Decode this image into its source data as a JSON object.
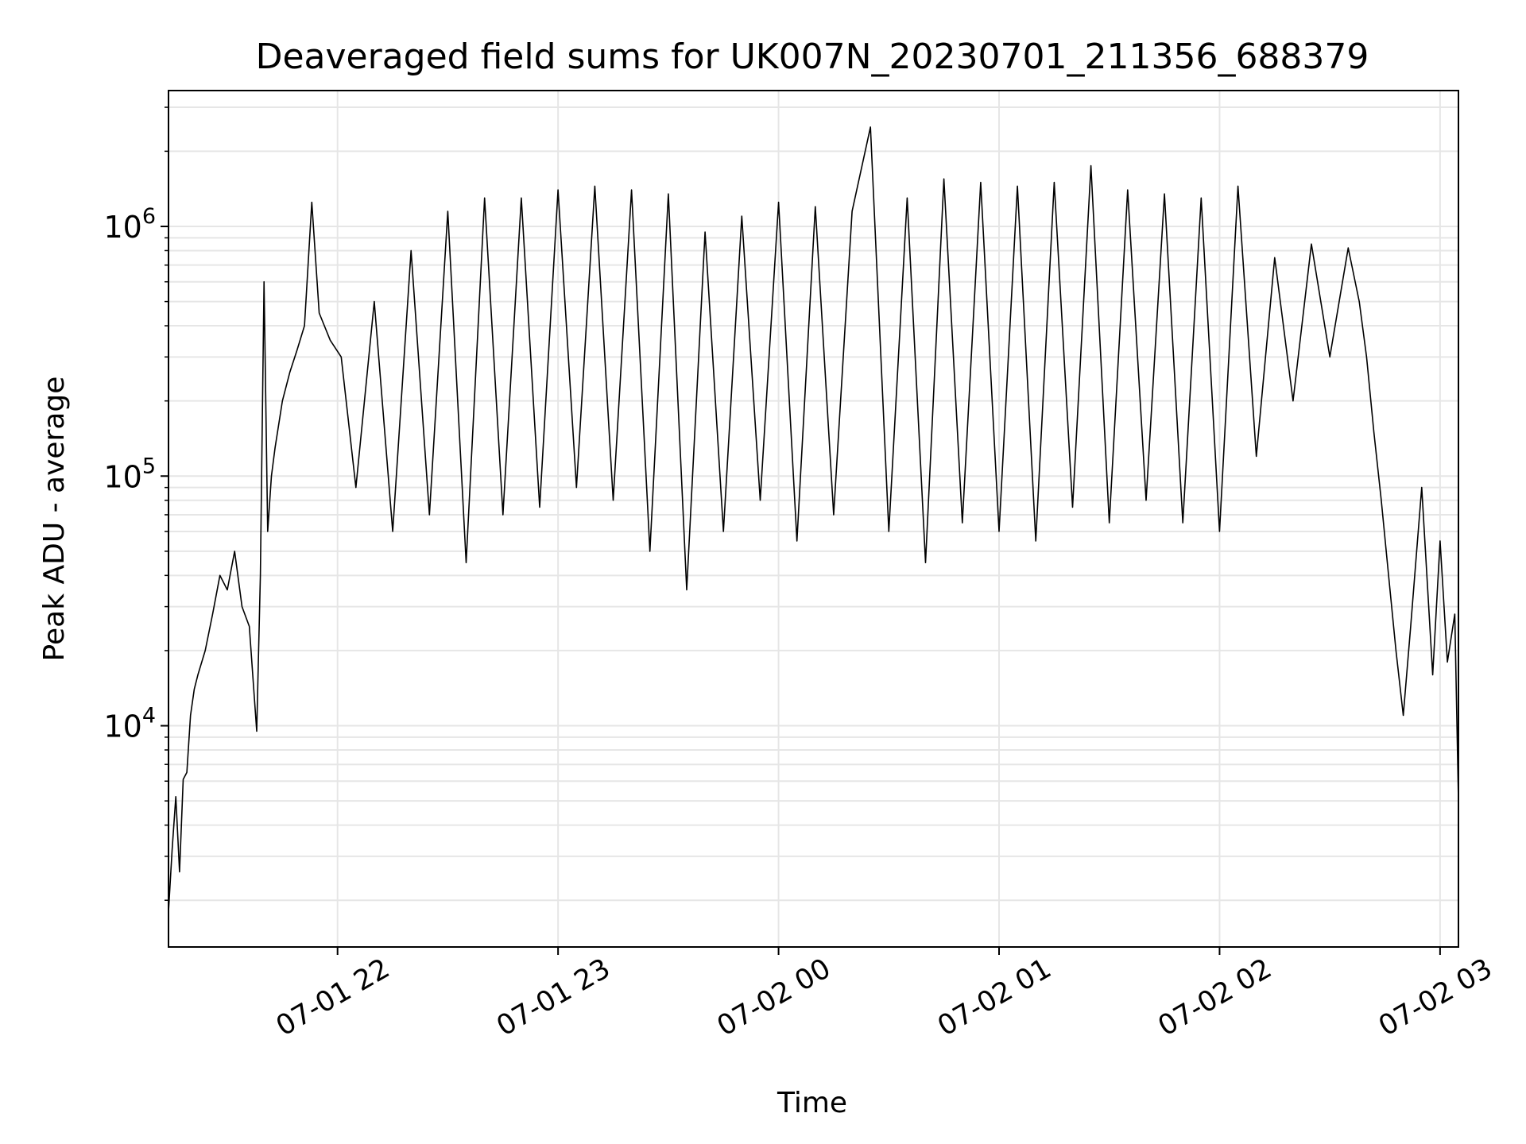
{
  "chart_data": {
    "type": "line",
    "title": "Deaveraged field sums for UK007N_20230701_211356_688379",
    "xlabel": "Time",
    "ylabel": "Peak ADU - average",
    "yscale": "log",
    "grid": true,
    "line_color": "#000000",
    "grid_color": "#e6e6e6",
    "xlim": [
      "2023-07-01 21:14",
      "2023-07-02 03:05"
    ],
    "ylim": [
      1300,
      3500000
    ],
    "xticks": [
      {
        "value": "2023-07-01 22:00",
        "label": "07-01 22"
      },
      {
        "value": "2023-07-01 23:00",
        "label": "07-01 23"
      },
      {
        "value": "2023-07-02 00:00",
        "label": "07-02 00"
      },
      {
        "value": "2023-07-02 01:00",
        "label": "07-02 01"
      },
      {
        "value": "2023-07-02 02:00",
        "label": "07-02 02"
      },
      {
        "value": "2023-07-02 03:00",
        "label": "07-02 03"
      }
    ],
    "yticks": [
      {
        "value": 10000,
        "base": "10",
        "exp": "4"
      },
      {
        "value": 100000,
        "base": "10",
        "exp": "5"
      },
      {
        "value": 1000000,
        "base": "10",
        "exp": "6"
      }
    ],
    "series": [
      {
        "x": [
          "2023-07-01 21:14",
          "2023-07-01 21:15",
          "2023-07-01 21:16",
          "2023-07-01 21:17",
          "2023-07-01 21:18",
          "2023-07-01 21:19",
          "2023-07-01 21:20",
          "2023-07-01 21:21",
          "2023-07-01 21:22",
          "2023-07-01 21:24",
          "2023-07-01 21:26",
          "2023-07-01 21:28",
          "2023-07-01 21:30",
          "2023-07-01 21:32",
          "2023-07-01 21:34",
          "2023-07-01 21:36",
          "2023-07-01 21:38",
          "2023-07-01 21:39",
          "2023-07-01 21:40",
          "2023-07-01 21:41",
          "2023-07-01 21:42",
          "2023-07-01 21:43",
          "2023-07-01 21:45",
          "2023-07-01 21:47",
          "2023-07-01 21:49",
          "2023-07-01 21:51",
          "2023-07-01 21:53",
          "2023-07-01 21:55",
          "2023-07-01 21:58",
          "2023-07-01 22:01",
          "2023-07-01 22:05",
          "2023-07-01 22:10",
          "2023-07-01 22:15",
          "2023-07-01 22:20",
          "2023-07-01 22:25",
          "2023-07-01 22:30",
          "2023-07-01 22:35",
          "2023-07-01 22:40",
          "2023-07-01 22:45",
          "2023-07-01 22:50",
          "2023-07-01 22:55",
          "2023-07-01 23:00",
          "2023-07-01 23:05",
          "2023-07-01 23:10",
          "2023-07-01 23:15",
          "2023-07-01 23:20",
          "2023-07-01 23:25",
          "2023-07-01 23:30",
          "2023-07-01 23:35",
          "2023-07-01 23:40",
          "2023-07-01 23:45",
          "2023-07-01 23:50",
          "2023-07-01 23:55",
          "2023-07-02 00:00",
          "2023-07-02 00:05",
          "2023-07-02 00:10",
          "2023-07-02 00:15",
          "2023-07-02 00:20",
          "2023-07-02 00:25",
          "2023-07-02 00:30",
          "2023-07-02 00:35",
          "2023-07-02 00:40",
          "2023-07-02 00:45",
          "2023-07-02 00:50",
          "2023-07-02 00:55",
          "2023-07-02 01:00",
          "2023-07-02 01:05",
          "2023-07-02 01:10",
          "2023-07-02 01:15",
          "2023-07-02 01:20",
          "2023-07-02 01:25",
          "2023-07-02 01:30",
          "2023-07-02 01:35",
          "2023-07-02 01:40",
          "2023-07-02 01:45",
          "2023-07-02 01:50",
          "2023-07-02 01:55",
          "2023-07-02 02:00",
          "2023-07-02 02:05",
          "2023-07-02 02:10",
          "2023-07-02 02:15",
          "2023-07-02 02:20",
          "2023-07-02 02:25",
          "2023-07-02 02:30",
          "2023-07-02 02:35",
          "2023-07-02 02:38",
          "2023-07-02 02:40",
          "2023-07-02 02:42",
          "2023-07-02 02:44",
          "2023-07-02 02:46",
          "2023-07-02 02:48",
          "2023-07-02 02:50",
          "2023-07-02 02:52",
          "2023-07-02 02:55",
          "2023-07-02 02:58",
          "2023-07-02 03:00",
          "2023-07-02 03:02",
          "2023-07-02 03:04",
          "2023-07-02 03:05"
        ],
        "y": [
          1800,
          3200,
          5200,
          2600,
          6100,
          6500,
          11000,
          14000,
          16000,
          20000,
          28000,
          40000,
          35000,
          50000,
          30000,
          25000,
          9500,
          40000,
          600000,
          60000,
          100000,
          130000,
          200000,
          260000,
          320000,
          400000,
          1250000,
          450000,
          350000,
          300000,
          90000,
          500000,
          60000,
          800000,
          70000,
          1150000,
          45000,
          1300000,
          70000,
          1300000,
          75000,
          1400000,
          90000,
          1450000,
          80000,
          1400000,
          50000,
          1350000,
          35000,
          950000,
          60000,
          1100000,
          80000,
          1250000,
          55000,
          1200000,
          70000,
          1150000,
          2500000,
          60000,
          1300000,
          45000,
          1550000,
          65000,
          1500000,
          60000,
          1450000,
          55000,
          1500000,
          75000,
          1750000,
          65000,
          1400000,
          80000,
          1350000,
          65000,
          1300000,
          60000,
          1450000,
          120000,
          750000,
          200000,
          850000,
          300000,
          820000,
          500000,
          300000,
          150000,
          80000,
          40000,
          20000,
          11000,
          25000,
          90000,
          16000,
          55000,
          18000,
          28000,
          5000
        ]
      }
    ]
  }
}
